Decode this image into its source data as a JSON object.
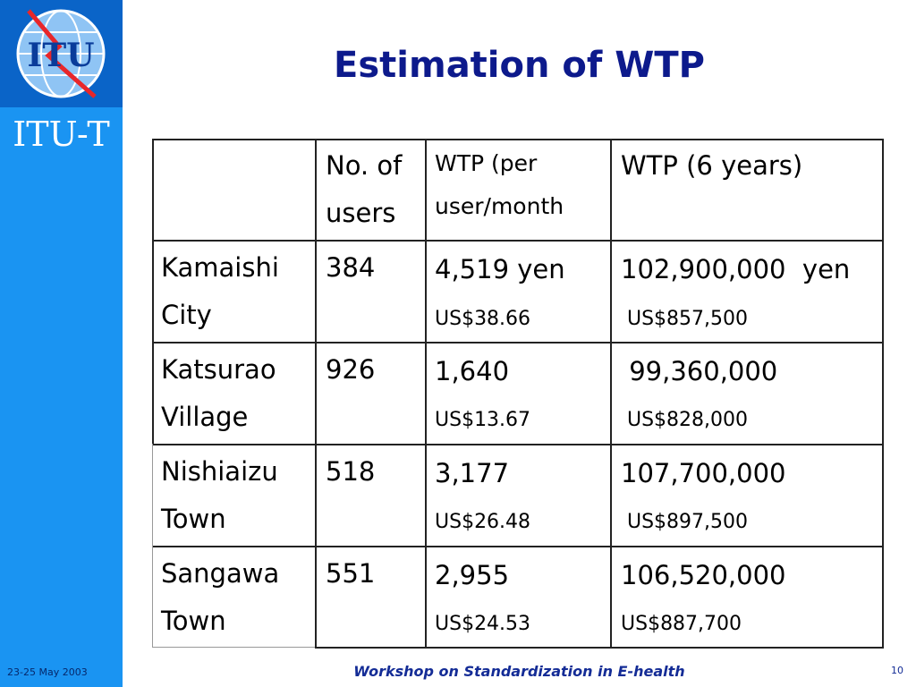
{
  "sidebar": {
    "logo_text": "ITU",
    "brand": "ITU-T",
    "date": "23-25 May 2003"
  },
  "title": "Estimation of WTP",
  "table": {
    "headers": [
      "",
      "No. of users",
      "WTP (per user/month",
      "WTP (6 years)"
    ],
    "header_lines": {
      "users": [
        "No. of",
        "users"
      ],
      "wtp_month": [
        "WTP (per",
        "user/month"
      ],
      "wtp_6": "WTP (6 years)"
    },
    "rows": [
      {
        "name": [
          "Kamaishi",
          "City"
        ],
        "users": "384",
        "wtp_month": "4,519 yen",
        "wtp_month_usd": "US$38.66",
        "wtp_6": "102,900,000  yen",
        "wtp_6_usd": " US$857,500"
      },
      {
        "name": [
          "Katsurao",
          "Village"
        ],
        "users": "926",
        "wtp_month": "1,640",
        "wtp_month_usd": "US$13.67",
        "wtp_6": " 99,360,000",
        "wtp_6_usd": " US$828,000"
      },
      {
        "name": [
          "Nishiaizu",
          "Town"
        ],
        "users": "518",
        "wtp_month": "3,177",
        "wtp_month_usd": "US$26.48",
        "wtp_6": "107,700,000",
        "wtp_6_usd": " US$897,500"
      },
      {
        "name": [
          "Sangawa",
          "Town"
        ],
        "users": "551",
        "wtp_month": "2,955",
        "wtp_month_usd": "US$24.53",
        "wtp_6": "106,520,000",
        "wtp_6_usd": "US$887,700"
      }
    ]
  },
  "footer": {
    "text": "Workshop on Standardization in E-health",
    "page": "10"
  }
}
